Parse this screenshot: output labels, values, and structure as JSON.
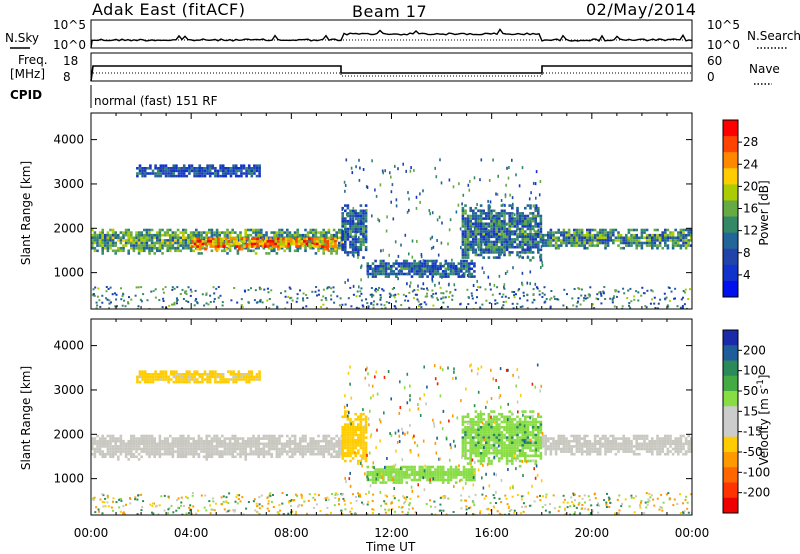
{
  "header": {
    "station": "Adak East (fitACF)",
    "beam": "Beam 17",
    "date": "02/May/2014"
  },
  "panels": {
    "sky_label": "N.Sky",
    "search_label": "N.Search",
    "sky_left_ticks": [
      "10^5",
      "10^0"
    ],
    "sky_right_ticks": [
      "10^5",
      "10^0"
    ],
    "freq_label_1": "Freq.",
    "freq_label_2": "[MHz]",
    "freq_ticks": [
      "18",
      "8"
    ],
    "nave_ticks": [
      "60",
      "0"
    ],
    "nave_label": "Nave",
    "cpid_label": "CPID",
    "cpid_text": "normal (fast) 151 RF"
  },
  "power_colorbar": {
    "label": "Power [dB]",
    "ticks": [
      "28",
      "24",
      "20",
      "16",
      "12",
      "8",
      "4"
    ],
    "colors": [
      "#ff0000",
      "#ff4400",
      "#ff8800",
      "#ffcc00",
      "#aacc00",
      "#66aa44",
      "#338866",
      "#226699",
      "#2244aa",
      "#1133cc",
      "#0011ee"
    ]
  },
  "velocity_colorbar": {
    "label": "Velocity [m s",
    "label_sup": "-1",
    "label_end": "]",
    "ticks": [
      "200",
      "100",
      "50",
      "15",
      "-15",
      "-50",
      "-100",
      "-200"
    ],
    "colors": [
      "#1a2aa8",
      "#1e5c9a",
      "#2a8a5a",
      "#44aa44",
      "#88dd44",
      "#cccccc",
      "#cccccc",
      "#ffcc00",
      "#ff9900",
      "#ff6600",
      "#ff3300",
      "#ee0000"
    ]
  },
  "axes": {
    "ylabel": "Slant Range [km]",
    "yticks": [
      "4000",
      "3000",
      "2000",
      "1000"
    ],
    "xticks": [
      "00:00",
      "04:00",
      "08:00",
      "12:00",
      "16:00",
      "20:00",
      "00:00"
    ],
    "xlabel": "Time UT"
  },
  "chart_data": [
    {
      "type": "heatmap",
      "title": "Power",
      "ylabel": "Slant Range [km]",
      "xlabel": "Time UT",
      "colorbar_label": "Power [dB]",
      "x_range_hours": [
        0,
        24
      ],
      "y_range_km": [
        180,
        4600
      ],
      "regions": [
        {
          "t_start": 0.0,
          "t_end": 10.0,
          "range_low": 1450,
          "range_high": 2050,
          "power_db": 14
        },
        {
          "t_start": 4.0,
          "t_end": 9.8,
          "range_low": 1550,
          "range_high": 1850,
          "power_db": 24
        },
        {
          "t_start": 1.8,
          "t_end": 6.7,
          "range_low": 3150,
          "range_high": 3500,
          "power_db": 6
        },
        {
          "t_start": 10.0,
          "t_end": 11.0,
          "range_low": 1300,
          "range_high": 2600,
          "power_db": 8
        },
        {
          "t_start": 11.0,
          "t_end": 15.3,
          "range_low": 900,
          "range_high": 1350,
          "power_db": 8
        },
        {
          "t_start": 14.8,
          "t_end": 18.0,
          "range_low": 1300,
          "range_high": 2600,
          "power_db": 10
        },
        {
          "t_start": 18.0,
          "t_end": 24.0,
          "range_low": 1550,
          "range_high": 2050,
          "power_db": 12
        }
      ]
    },
    {
      "type": "heatmap",
      "title": "Velocity",
      "ylabel": "Slant Range [km]",
      "xlabel": "Time UT",
      "colorbar_label": "Velocity [m s-1]",
      "x_range_hours": [
        0,
        24
      ],
      "y_range_km": [
        180,
        4600
      ],
      "regions": [
        {
          "t_start": 0.0,
          "t_end": 10.0,
          "range_low": 1450,
          "range_high": 2050,
          "velocity": 0
        },
        {
          "t_start": 1.8,
          "t_end": 6.7,
          "range_low": 3150,
          "range_high": 3500,
          "velocity": -30
        },
        {
          "t_start": 10.0,
          "t_end": 11.0,
          "range_low": 1300,
          "range_high": 2600,
          "velocity": -40
        },
        {
          "t_start": 11.0,
          "t_end": 15.3,
          "range_low": 900,
          "range_high": 1350,
          "velocity": 40
        },
        {
          "t_start": 14.8,
          "t_end": 18.0,
          "range_low": 1300,
          "range_high": 2600,
          "velocity": 50
        },
        {
          "t_start": 18.0,
          "t_end": 24.0,
          "range_low": 1550,
          "range_high": 2050,
          "velocity": 0
        }
      ]
    }
  ]
}
